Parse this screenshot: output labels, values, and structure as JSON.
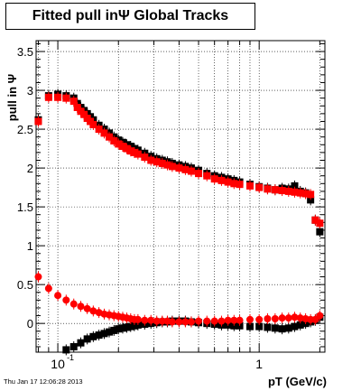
{
  "footer": {
    "timestamp": "Thu Jan 17 12:06:28 2013"
  },
  "chart_data": {
    "type": "scatter",
    "title": "Fitted pull inΨ   Global Tracks",
    "xlabel": "pT (GeV/c)",
    "ylabel": "pull in Ψ",
    "xscale": "log",
    "xlim": [
      0.078,
      2.12
    ],
    "ylim": [
      -0.37,
      3.64
    ],
    "grid": true,
    "x_ticks": [
      {
        "value": 0.1,
        "label": "10",
        "exp": "-1"
      },
      {
        "value": 1,
        "label": "1",
        "exp": ""
      }
    ],
    "y_ticks": [
      {
        "value": 0,
        "label": "0"
      },
      {
        "value": 0.5,
        "label": "0.5"
      },
      {
        "value": 1,
        "label": "1"
      },
      {
        "value": 1.5,
        "label": "1.5"
      },
      {
        "value": 2,
        "label": "2"
      },
      {
        "value": 2.5,
        "label": "2.5"
      },
      {
        "value": 3,
        "label": "3"
      },
      {
        "value": 3.5,
        "label": "3.5"
      }
    ],
    "series": [
      {
        "color": "#000000",
        "marker": "square",
        "role": "upper",
        "x": [
          0.08,
          0.09,
          0.1,
          0.11,
          0.12,
          0.125,
          0.13,
          0.135,
          0.14,
          0.145,
          0.15,
          0.16,
          0.17,
          0.18,
          0.19,
          0.2,
          0.21,
          0.22,
          0.23,
          0.24,
          0.25,
          0.27,
          0.29,
          0.31,
          0.33,
          0.35,
          0.37,
          0.4,
          0.43,
          0.46,
          0.5,
          0.55,
          0.6,
          0.65,
          0.7,
          0.75,
          0.8,
          0.9,
          1.0,
          1.1,
          1.2,
          1.3,
          1.4,
          1.5,
          1.6,
          1.7,
          1.8,
          1.9,
          2.0
        ],
        "y": [
          2.62,
          2.93,
          2.95,
          2.93,
          2.9,
          2.83,
          2.78,
          2.74,
          2.7,
          2.66,
          2.62,
          2.55,
          2.5,
          2.45,
          2.4,
          2.36,
          2.33,
          2.3,
          2.28,
          2.25,
          2.23,
          2.19,
          2.15,
          2.12,
          2.1,
          2.08,
          2.06,
          2.04,
          2.02,
          2.0,
          1.97,
          1.93,
          1.9,
          1.88,
          1.86,
          1.84,
          1.82,
          1.79,
          1.76,
          1.74,
          1.72,
          1.74,
          1.73,
          1.77,
          1.7,
          1.68,
          1.59,
          1.33,
          1.18
        ]
      },
      {
        "color": "#ff0000",
        "marker": "square",
        "role": "upper",
        "x": [
          0.08,
          0.09,
          0.1,
          0.11,
          0.12,
          0.125,
          0.13,
          0.135,
          0.14,
          0.145,
          0.15,
          0.16,
          0.17,
          0.18,
          0.19,
          0.2,
          0.21,
          0.22,
          0.23,
          0.24,
          0.25,
          0.27,
          0.29,
          0.31,
          0.33,
          0.35,
          0.37,
          0.4,
          0.43,
          0.46,
          0.5,
          0.55,
          0.6,
          0.65,
          0.7,
          0.75,
          0.8,
          0.9,
          1.0,
          1.1,
          1.2,
          1.3,
          1.4,
          1.5,
          1.6,
          1.7,
          1.8,
          1.9,
          2.0
        ],
        "y": [
          2.6,
          2.91,
          2.91,
          2.9,
          2.86,
          2.78,
          2.73,
          2.69,
          2.64,
          2.6,
          2.56,
          2.5,
          2.45,
          2.4,
          2.35,
          2.31,
          2.28,
          2.25,
          2.22,
          2.2,
          2.18,
          2.14,
          2.1,
          2.08,
          2.06,
          2.04,
          2.02,
          2.0,
          1.98,
          1.96,
          1.93,
          1.9,
          1.86,
          1.84,
          1.82,
          1.8,
          1.79,
          1.77,
          1.75,
          1.73,
          1.72,
          1.71,
          1.7,
          1.69,
          1.68,
          1.67,
          1.66,
          1.33,
          1.29
        ]
      },
      {
        "color": "#000000",
        "marker": "square",
        "role": "lower",
        "x": [
          0.11,
          0.12,
          0.13,
          0.14,
          0.15,
          0.16,
          0.17,
          0.18,
          0.19,
          0.2,
          0.21,
          0.22,
          0.23,
          0.24,
          0.25,
          0.27,
          0.29,
          0.31,
          0.33,
          0.35,
          0.37,
          0.4,
          0.43,
          0.46,
          0.5,
          0.55,
          0.6,
          0.65,
          0.7,
          0.75,
          0.8,
          0.9,
          1.0,
          1.1,
          1.2,
          1.3,
          1.4,
          1.5,
          1.6,
          1.7,
          1.8,
          1.9,
          2.0
        ],
        "y": [
          -0.34,
          -0.3,
          -0.25,
          -0.2,
          -0.17,
          -0.15,
          -0.13,
          -0.11,
          -0.09,
          -0.07,
          -0.06,
          -0.05,
          -0.04,
          -0.03,
          -0.02,
          -0.01,
          0.0,
          0.01,
          0.02,
          0.02,
          0.03,
          0.03,
          0.03,
          0.02,
          0.01,
          0.0,
          -0.01,
          -0.02,
          -0.02,
          -0.03,
          -0.03,
          -0.04,
          -0.04,
          -0.05,
          -0.06,
          -0.07,
          -0.06,
          -0.04,
          -0.02,
          0.0,
          0.02,
          0.04,
          0.08
        ]
      },
      {
        "color": "#ff0000",
        "marker": "circle",
        "role": "lower",
        "x": [
          0.08,
          0.09,
          0.1,
          0.11,
          0.12,
          0.13,
          0.14,
          0.15,
          0.16,
          0.17,
          0.18,
          0.19,
          0.2,
          0.21,
          0.22,
          0.23,
          0.24,
          0.25,
          0.27,
          0.29,
          0.31,
          0.33,
          0.35,
          0.37,
          0.4,
          0.43,
          0.46,
          0.5,
          0.55,
          0.6,
          0.65,
          0.7,
          0.75,
          0.8,
          0.9,
          1.0,
          1.1,
          1.2,
          1.3,
          1.4,
          1.5,
          1.6,
          1.7,
          1.8,
          1.9,
          2.0
        ],
        "y": [
          0.6,
          0.45,
          0.36,
          0.3,
          0.25,
          0.22,
          0.19,
          0.16,
          0.14,
          0.12,
          0.11,
          0.1,
          0.09,
          0.08,
          0.07,
          0.06,
          0.05,
          0.05,
          0.04,
          0.04,
          0.03,
          0.03,
          0.03,
          0.02,
          0.02,
          0.02,
          0.02,
          0.03,
          0.03,
          0.03,
          0.03,
          0.04,
          0.04,
          0.04,
          0.05,
          0.05,
          0.06,
          0.06,
          0.07,
          0.07,
          0.08,
          0.07,
          0.06,
          0.05,
          0.05,
          0.1
        ]
      }
    ]
  }
}
